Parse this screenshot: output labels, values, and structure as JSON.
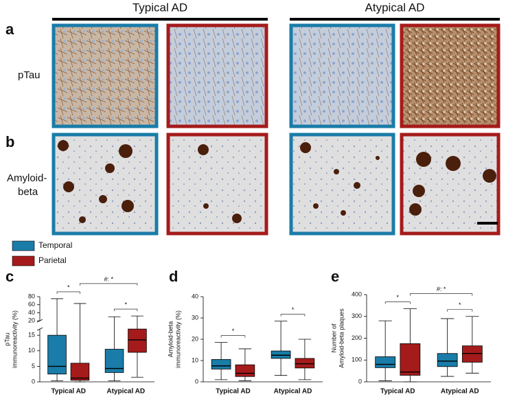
{
  "headers": [
    "Typical AD",
    "Atypical AD"
  ],
  "panel_labels": [
    "a",
    "b",
    "c",
    "d",
    "e"
  ],
  "row_labels": [
    [
      "pTau"
    ],
    [
      "Amyloid-",
      "beta"
    ]
  ],
  "chart_data": [
    {
      "type": "box",
      "ylabel": [
        "pTau",
        "immunoreactivity (%)"
      ],
      "categories": [
        "Typical AD",
        "Atypical AD"
      ],
      "series": [
        {
          "name": "Temporal",
          "color": "#1a7ca8",
          "values": [
            [
              0.3,
              2.5,
              5,
              15,
              75
            ],
            [
              0.3,
              3,
              4.3,
              10.5,
              30
            ]
          ]
        },
        {
          "name": "Parietal",
          "color": "#a51b1b",
          "values": [
            [
              0,
              0.5,
              1.2,
              6,
              63
            ],
            [
              1.5,
              9.5,
              13.5,
              17,
              32
            ]
          ]
        }
      ],
      "ylim": [
        0,
        80
      ],
      "axis_break": [
        17,
        20
      ],
      "yticks": [
        0,
        5,
        10,
        15,
        20,
        40,
        60,
        80
      ],
      "annotations": [
        {
          "text": "*",
          "between": [
            0,
            1
          ]
        },
        {
          "text": "*",
          "between": [
            2,
            3
          ]
        },
        {
          "text": "#: *",
          "between": [
            1,
            3
          ]
        }
      ]
    },
    {
      "type": "box",
      "ylabel": [
        "Amyloid-beta",
        "immunoreactivity (%)"
      ],
      "categories": [
        "Typical AD",
        "Atypical AD"
      ],
      "series": [
        {
          "name": "Temporal",
          "color": "#1a7ca8",
          "values": [
            [
              1,
              6,
              7.5,
              10.5,
              18.5
            ],
            [
              3,
              11,
              12.5,
              14.5,
              28.5
            ]
          ]
        },
        {
          "name": "Parietal",
          "color": "#a51b1b",
          "values": [
            [
              0.5,
              2.5,
              4,
              8,
              15.5
            ],
            [
              1,
              6.5,
              8.5,
              11,
              20
            ]
          ]
        }
      ],
      "ylim": [
        0,
        40
      ],
      "yticks": [
        0,
        10,
        20,
        30,
        40
      ],
      "annotations": [
        {
          "text": "*",
          "between": [
            0,
            1
          ]
        },
        {
          "text": "*",
          "between": [
            2,
            3
          ]
        }
      ]
    },
    {
      "type": "box",
      "ylabel": [
        "Number of",
        "Amyloid-beta plaques"
      ],
      "categories": [
        "Typical AD",
        "Atypical AD"
      ],
      "series": [
        {
          "name": "Temporal",
          "color": "#1a7ca8",
          "values": [
            [
              5,
              65,
              80,
              115,
              280
            ],
            [
              25,
              70,
              95,
              130,
              290
            ]
          ]
        },
        {
          "name": "Parietal",
          "color": "#a51b1b",
          "values": [
            [
              0,
              30,
              45,
              175,
              335
            ],
            [
              40,
              90,
              130,
              165,
              300
            ]
          ]
        }
      ],
      "ylim": [
        0,
        400
      ],
      "yticks": [
        0,
        100,
        200,
        300,
        400
      ],
      "annotations": [
        {
          "text": "*",
          "between": [
            0,
            1
          ]
        },
        {
          "text": "*",
          "between": [
            2,
            3
          ]
        },
        {
          "text": "#: *",
          "between": [
            1,
            3
          ]
        }
      ]
    }
  ]
}
